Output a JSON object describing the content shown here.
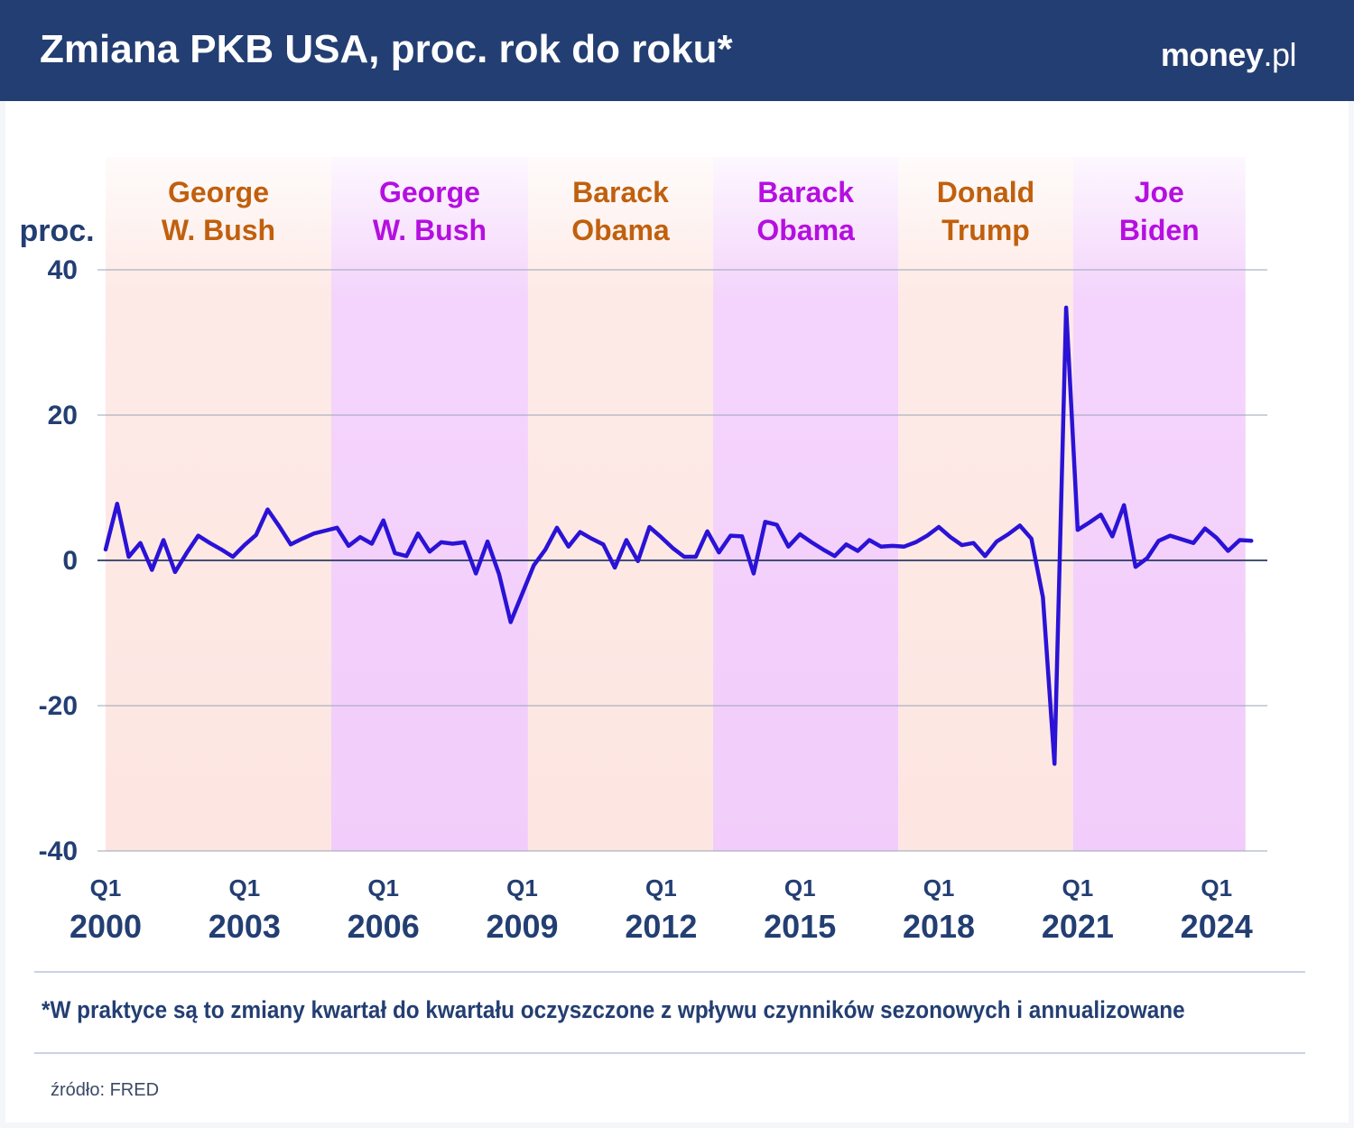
{
  "header": {
    "title": "Zmiana PKB USA, proc. rok do roku*",
    "logo_main": "money",
    "logo_tld": ".pl"
  },
  "footnote": "*W praktyce są to zmiany kwartał do kwartału oczyszczone z wpływu czynników sezonowych i annualizowane",
  "source": "źródło: FRED",
  "colors": {
    "header_bg": "#233e72",
    "line": "#2a12d6",
    "band_a": "#fde6e2",
    "band_b": "#f2cdfb",
    "label_a": "#c0600d",
    "label_b": "#b50fe0",
    "text": "#233e72"
  },
  "chart_data": {
    "type": "line",
    "title": "Zmiana PKB USA, proc. rok do roku*",
    "ylabel": "proc.",
    "xlabel": "",
    "ylim": [
      -40,
      40
    ],
    "yticks": [
      40,
      20,
      0,
      -20,
      -40
    ],
    "grid": true,
    "x_start": "2000 Q1",
    "x_ticks": [
      {
        "quarter": "Q1",
        "year": "2000",
        "index": 0
      },
      {
        "quarter": "Q1",
        "year": "2003",
        "index": 12
      },
      {
        "quarter": "Q1",
        "year": "2006",
        "index": 24
      },
      {
        "quarter": "Q1",
        "year": "2009",
        "index": 36
      },
      {
        "quarter": "Q1",
        "year": "2012",
        "index": 48
      },
      {
        "quarter": "Q1",
        "year": "2015",
        "index": 60
      },
      {
        "quarter": "Q1",
        "year": "2018",
        "index": 72
      },
      {
        "quarter": "Q1",
        "year": "2021",
        "index": 84
      },
      {
        "quarter": "Q1",
        "year": "2024",
        "index": 96
      }
    ],
    "terms": [
      {
        "name_line1": "George",
        "name_line2": "W. Bush",
        "start": 0,
        "end": 19.5,
        "style": "a"
      },
      {
        "name_line1": "George",
        "name_line2": "W. Bush",
        "start": 19.5,
        "end": 36.5,
        "style": "b"
      },
      {
        "name_line1": "Barack",
        "name_line2": "Obama",
        "start": 36.5,
        "end": 52.5,
        "style": "a"
      },
      {
        "name_line1": "Barack",
        "name_line2": "Obama",
        "start": 52.5,
        "end": 68.5,
        "style": "b"
      },
      {
        "name_line1": "Donald",
        "name_line2": "Trump",
        "start": 68.5,
        "end": 83.6,
        "style": "a"
      },
      {
        "name_line1": "Joe",
        "name_line2": "Biden",
        "start": 83.6,
        "end": 98.5,
        "style": "b"
      }
    ],
    "series": [
      {
        "name": "PKB USA",
        "values": [
          1.5,
          7.8,
          0.5,
          2.4,
          -1.3,
          2.8,
          -1.6,
          1.0,
          3.4,
          2.4,
          1.5,
          0.5,
          2.1,
          3.5,
          7.0,
          4.7,
          2.2,
          3.0,
          3.7,
          4.1,
          4.5,
          2.0,
          3.2,
          2.3,
          5.5,
          1.0,
          0.6,
          3.7,
          1.2,
          2.5,
          2.3,
          2.5,
          -1.8,
          2.6,
          -1.9,
          -8.5,
          -4.6,
          -0.7,
          1.5,
          4.5,
          1.9,
          3.9,
          3.0,
          2.2,
          -1.0,
          2.8,
          -0.1,
          4.6,
          3.2,
          1.7,
          0.5,
          0.5,
          4.0,
          1.1,
          3.4,
          3.3,
          -1.8,
          5.3,
          4.9,
          1.9,
          3.6,
          2.5,
          1.5,
          0.6,
          2.2,
          1.3,
          2.8,
          1.9,
          2.0,
          1.9,
          2.5,
          3.4,
          4.6,
          3.2,
          2.1,
          2.4,
          0.6,
          2.6,
          3.6,
          4.8,
          3.0,
          -5.1,
          -28.0,
          34.8,
          4.2,
          5.2,
          6.3,
          3.3,
          7.6,
          -0.9,
          0.3,
          2.7,
          3.4,
          2.9,
          2.4,
          4.4,
          3.1,
          1.3,
          2.8,
          2.7
        ]
      }
    ]
  }
}
